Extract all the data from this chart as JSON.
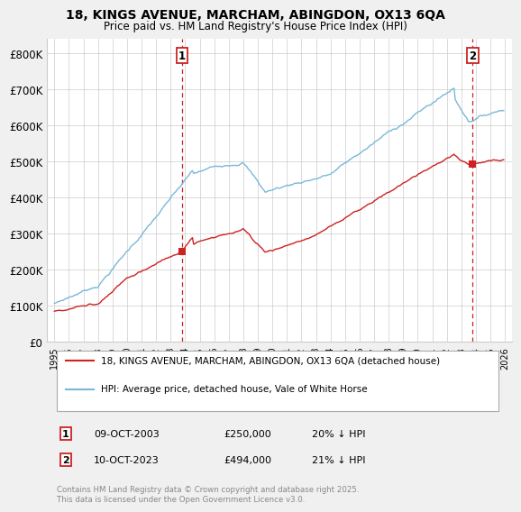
{
  "title1": "18, KINGS AVENUE, MARCHAM, ABINGDON, OX13 6QA",
  "title2": "Price paid vs. HM Land Registry's House Price Index (HPI)",
  "yticks": [
    0,
    100000,
    200000,
    300000,
    400000,
    500000,
    600000,
    700000,
    800000
  ],
  "ytick_labels": [
    "£0",
    "£100K",
    "£200K",
    "£300K",
    "£400K",
    "£500K",
    "£600K",
    "£700K",
    "£800K"
  ],
  "xlim_start": 1994.5,
  "xlim_end": 2026.5,
  "ylim": [
    0,
    840000
  ],
  "hpi_color": "#7ab8d9",
  "price_color": "#cc2222",
  "dashed_color": "#cc2222",
  "legend_label_red": "18, KINGS AVENUE, MARCHAM, ABINGDON, OX13 6QA (detached house)",
  "legend_label_blue": "HPI: Average price, detached house, Vale of White Horse",
  "sale1_date": "09-OCT-2003",
  "sale1_price": "£250,000",
  "sale1_hpi": "20% ↓ HPI",
  "sale1_x": 2003.77,
  "sale1_y": 250000,
  "sale2_date": "10-OCT-2023",
  "sale2_price": "£494,000",
  "sale2_hpi": "21% ↓ HPI",
  "sale2_x": 2023.78,
  "sale2_y": 494000,
  "footnote": "Contains HM Land Registry data © Crown copyright and database right 2025.\nThis data is licensed under the Open Government Licence v3.0.",
  "bg_color": "#f0f0f0",
  "plot_bg_color": "#ffffff",
  "grid_color": "#cccccc"
}
